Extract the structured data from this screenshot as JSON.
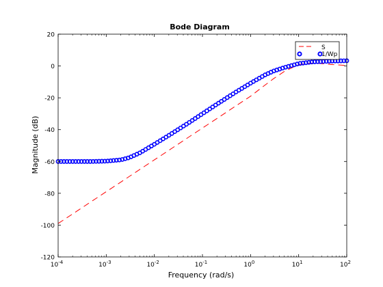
{
  "chart_data": {
    "type": "line",
    "title": "Bode Diagram",
    "xlabel": "Frequency  (rad/s)",
    "ylabel": "Magnitude (dB)",
    "xscale": "log",
    "xlim": [
      0.0001,
      100
    ],
    "ylim": [
      -120,
      20
    ],
    "x_ticks": [
      0.0001,
      0.001,
      0.01,
      0.1,
      1,
      10,
      100
    ],
    "x_tick_labels": [
      {
        "base": "10",
        "exp": "-4"
      },
      {
        "base": "10",
        "exp": "-3"
      },
      {
        "base": "10",
        "exp": "-2"
      },
      {
        "base": "10",
        "exp": "-1"
      },
      {
        "base": "10",
        "exp": "0"
      },
      {
        "base": "10",
        "exp": "1"
      },
      {
        "base": "10",
        "exp": "2"
      }
    ],
    "y_ticks": [
      20,
      0,
      -20,
      -40,
      -60,
      -80,
      -100,
      -120
    ],
    "y_tick_labels": [
      "20",
      "0",
      "-20",
      "-40",
      "-60",
      "-80",
      "-100",
      "-120"
    ],
    "grid": false,
    "legend_position": "top-right",
    "series": [
      {
        "name": "S",
        "style": "dashed",
        "color": "#ff0000",
        "x": [
          0.0001,
          0.0002,
          0.0005,
          0.001,
          0.002,
          0.005,
          0.01,
          0.02,
          0.05,
          0.1,
          0.2,
          0.5,
          1,
          2,
          3,
          5,
          8,
          10,
          15,
          20,
          30,
          50,
          100
        ],
        "y": [
          -99,
          -93,
          -85,
          -79,
          -73,
          -65,
          -59,
          -53,
          -45,
          -39,
          -33,
          -25,
          -19,
          -12,
          -8,
          -3.5,
          -0.5,
          0.8,
          1.6,
          1.8,
          1.5,
          0.9,
          0.3
        ]
      },
      {
        "name": "1/Wp",
        "style": "circles",
        "color": "#0000ff",
        "x": [
          0.0001,
          0.0002,
          0.0005,
          0.001,
          0.002,
          0.003,
          0.005,
          0.01,
          0.02,
          0.05,
          0.1,
          0.2,
          0.5,
          1,
          2,
          3,
          5,
          10,
          20,
          50,
          100
        ],
        "y": [
          -60,
          -60,
          -60,
          -59.8,
          -59,
          -57.6,
          -54.6,
          -49.2,
          -43.6,
          -36,
          -30,
          -24,
          -16.3,
          -10.8,
          -5.6,
          -3.2,
          -1,
          1.5,
          2.6,
          3.1,
          3.3
        ]
      }
    ]
  },
  "colors": {
    "axes": "#000000",
    "background": "#ffffff",
    "figure_background": "#ffffff"
  }
}
